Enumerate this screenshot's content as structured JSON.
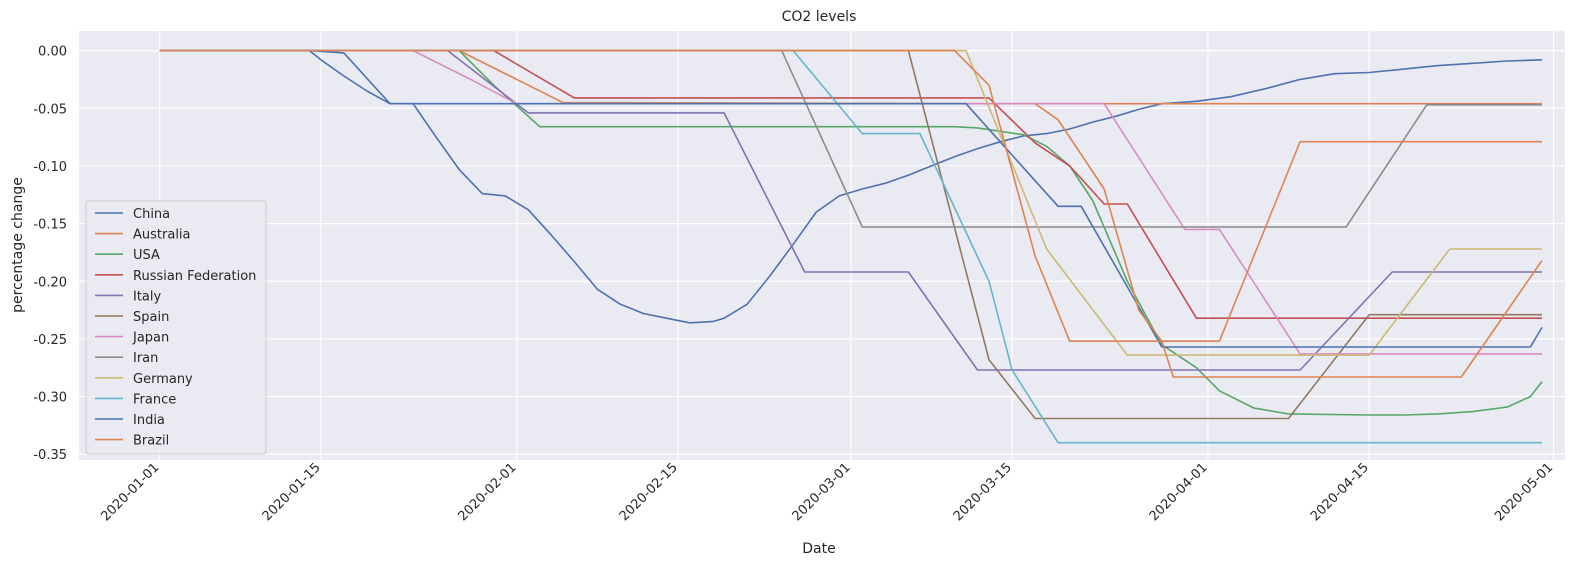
{
  "chart_data": {
    "type": "line",
    "title": "CO2 levels",
    "xlabel": "Date",
    "ylabel": "percentage change",
    "xlim": [
      "2019-12-25",
      "2020-05-02"
    ],
    "ylim": [
      -0.355,
      0.017
    ],
    "x_ticks": [
      "2020-01-01",
      "2020-01-15",
      "2020-02-01",
      "2020-02-15",
      "2020-03-01",
      "2020-03-15",
      "2020-04-01",
      "2020-04-15",
      "2020-05-01"
    ],
    "y_ticks": [
      "0.00",
      "-0.05",
      "-0.10",
      "-0.15",
      "-0.20",
      "-0.25",
      "-0.30",
      "-0.35"
    ],
    "y_tick_values": [
      0.0,
      -0.05,
      -0.1,
      -0.15,
      -0.2,
      -0.25,
      -0.3,
      -0.35
    ],
    "grid": true,
    "legend_position": "lower-left",
    "series": [
      {
        "name": "China",
        "color": "#4c72b0",
        "points": [
          [
            "2020-01-01",
            0
          ],
          [
            "2020-01-14",
            0
          ],
          [
            "2020-01-15",
            -0.008
          ],
          [
            "2020-01-17",
            -0.022
          ],
          [
            "2020-01-19",
            -0.035
          ],
          [
            "2020-01-21",
            -0.046
          ],
          [
            "2020-01-23",
            -0.046
          ],
          [
            "2020-01-25",
            -0.075
          ],
          [
            "2020-01-27",
            -0.103
          ],
          [
            "2020-01-29",
            -0.124
          ],
          [
            "2020-01-31",
            -0.126
          ],
          [
            "2020-02-02",
            -0.138
          ],
          [
            "2020-02-04",
            -0.16
          ],
          [
            "2020-02-06",
            -0.183
          ],
          [
            "2020-02-08",
            -0.207
          ],
          [
            "2020-02-10",
            -0.22
          ],
          [
            "2020-02-12",
            -0.228
          ],
          [
            "2020-02-14",
            -0.232
          ],
          [
            "2020-02-16",
            -0.236
          ],
          [
            "2020-02-18",
            -0.235
          ],
          [
            "2020-02-19",
            -0.232
          ],
          [
            "2020-02-21",
            -0.22
          ],
          [
            "2020-02-23",
            -0.195
          ],
          [
            "2020-02-25",
            -0.168
          ],
          [
            "2020-02-27",
            -0.14
          ],
          [
            "2020-02-29",
            -0.126
          ],
          [
            "2020-03-02",
            -0.12
          ],
          [
            "2020-03-04",
            -0.115
          ],
          [
            "2020-03-06",
            -0.108
          ],
          [
            "2020-03-08",
            -0.1
          ],
          [
            "2020-03-10",
            -0.092
          ],
          [
            "2020-03-12",
            -0.085
          ],
          [
            "2020-03-14",
            -0.079
          ],
          [
            "2020-03-16",
            -0.074
          ],
          [
            "2020-03-18",
            -0.072
          ],
          [
            "2020-03-20",
            -0.068
          ],
          [
            "2020-03-22",
            -0.062
          ],
          [
            "2020-03-24",
            -0.057
          ],
          [
            "2020-03-26",
            -0.051
          ],
          [
            "2020-03-28",
            -0.046
          ],
          [
            "2020-03-31",
            -0.044
          ],
          [
            "2020-04-03",
            -0.04
          ],
          [
            "2020-04-06",
            -0.033
          ],
          [
            "2020-04-09",
            -0.025
          ],
          [
            "2020-04-12",
            -0.02
          ],
          [
            "2020-04-15",
            -0.019
          ],
          [
            "2020-04-18",
            -0.016
          ],
          [
            "2020-04-21",
            -0.013
          ],
          [
            "2020-04-24",
            -0.011
          ],
          [
            "2020-04-27",
            -0.009
          ],
          [
            "2020-04-30",
            -0.008
          ]
        ]
      },
      {
        "name": "Australia",
        "color": "#dd8452",
        "points": [
          [
            "2020-01-01",
            0
          ],
          [
            "2020-01-27",
            0
          ],
          [
            "2020-01-30",
            -0.015
          ],
          [
            "2020-02-02",
            -0.03
          ],
          [
            "2020-02-05",
            -0.045
          ],
          [
            "2020-03-11",
            -0.046
          ],
          [
            "2020-04-30",
            -0.046
          ]
        ]
      },
      {
        "name": "USA",
        "color": "#55a868",
        "points": [
          [
            "2020-01-01",
            0
          ],
          [
            "2020-01-27",
            0
          ],
          [
            "2020-01-30",
            -0.03
          ],
          [
            "2020-02-03",
            -0.066
          ],
          [
            "2020-03-10",
            -0.066
          ],
          [
            "2020-03-12",
            -0.067
          ],
          [
            "2020-03-16",
            -0.073
          ],
          [
            "2020-03-18",
            -0.083
          ],
          [
            "2020-03-20",
            -0.1
          ],
          [
            "2020-03-22",
            -0.13
          ],
          [
            "2020-03-25",
            -0.2
          ],
          [
            "2020-03-28",
            -0.255
          ],
          [
            "2020-03-31",
            -0.275
          ],
          [
            "2020-04-02",
            -0.295
          ],
          [
            "2020-04-05",
            -0.31
          ],
          [
            "2020-04-08",
            -0.315
          ],
          [
            "2020-04-15",
            -0.316
          ],
          [
            "2020-04-18",
            -0.316
          ],
          [
            "2020-04-21",
            -0.315
          ],
          [
            "2020-04-24",
            -0.313
          ],
          [
            "2020-04-27",
            -0.309
          ],
          [
            "2020-04-29",
            -0.3
          ],
          [
            "2020-04-30",
            -0.287
          ]
        ]
      },
      {
        "name": "Russian Federation",
        "color": "#c44e52",
        "points": [
          [
            "2020-01-01",
            0
          ],
          [
            "2020-01-30",
            0
          ],
          [
            "2020-02-06",
            -0.041
          ],
          [
            "2020-03-13",
            -0.041
          ],
          [
            "2020-03-17",
            -0.08
          ],
          [
            "2020-03-20",
            -0.1
          ],
          [
            "2020-03-23",
            -0.133
          ],
          [
            "2020-03-25",
            -0.133
          ],
          [
            "2020-03-31",
            -0.232
          ],
          [
            "2020-04-30",
            -0.232
          ]
        ]
      },
      {
        "name": "Italy",
        "color": "#8172b3",
        "points": [
          [
            "2020-01-01",
            0
          ],
          [
            "2020-01-26",
            0
          ],
          [
            "2020-02-02",
            -0.054
          ],
          [
            "2020-02-19",
            -0.054
          ],
          [
            "2020-02-26",
            -0.192
          ],
          [
            "2020-03-06",
            -0.192
          ],
          [
            "2020-03-12",
            -0.277
          ],
          [
            "2020-04-09",
            -0.277
          ],
          [
            "2020-04-17",
            -0.192
          ],
          [
            "2020-04-30",
            -0.192
          ]
        ]
      },
      {
        "name": "Spain",
        "color": "#937860",
        "points": [
          [
            "2020-01-01",
            0
          ],
          [
            "2020-03-06",
            0
          ],
          [
            "2020-03-13",
            -0.268
          ],
          [
            "2020-03-17",
            -0.319
          ],
          [
            "2020-04-08",
            -0.319
          ],
          [
            "2020-04-15",
            -0.229
          ],
          [
            "2020-04-30",
            -0.229
          ]
        ]
      },
      {
        "name": "Japan",
        "color": "#da8bc3",
        "points": [
          [
            "2020-01-01",
            0
          ],
          [
            "2020-01-23",
            0
          ],
          [
            "2020-01-25",
            -0.01
          ],
          [
            "2020-01-28",
            -0.025
          ],
          [
            "2020-02-01",
            -0.046
          ],
          [
            "2020-03-23",
            -0.046
          ],
          [
            "2020-03-30",
            -0.155
          ],
          [
            "2020-04-02",
            -0.155
          ],
          [
            "2020-04-09",
            -0.263
          ],
          [
            "2020-04-30",
            -0.263
          ]
        ]
      },
      {
        "name": "Iran",
        "color": "#8c8c8c",
        "points": [
          [
            "2020-01-01",
            0
          ],
          [
            "2020-02-24",
            0
          ],
          [
            "2020-03-02",
            -0.153
          ],
          [
            "2020-04-13",
            -0.153
          ],
          [
            "2020-04-20",
            -0.047
          ],
          [
            "2020-04-30",
            -0.047
          ]
        ]
      },
      {
        "name": "Germany",
        "color": "#ccb974",
        "points": [
          [
            "2020-01-01",
            0
          ],
          [
            "2020-03-11",
            0
          ],
          [
            "2020-03-18",
            -0.172
          ],
          [
            "2020-03-25",
            -0.264
          ],
          [
            "2020-04-15",
            -0.264
          ],
          [
            "2020-04-22",
            -0.172
          ],
          [
            "2020-04-30",
            -0.172
          ]
        ]
      },
      {
        "name": "France",
        "color": "#64b5cd",
        "points": [
          [
            "2020-01-01",
            0
          ],
          [
            "2020-02-25",
            0
          ],
          [
            "2020-03-02",
            -0.072
          ],
          [
            "2020-03-07",
            -0.072
          ],
          [
            "2020-03-13",
            -0.2
          ],
          [
            "2020-03-15",
            -0.277
          ],
          [
            "2020-03-19",
            -0.34
          ],
          [
            "2020-04-30",
            -0.34
          ]
        ]
      },
      {
        "name": "India",
        "color": "#4c72b0",
        "points": [
          [
            "2020-01-01",
            0
          ],
          [
            "2020-01-14",
            0
          ],
          [
            "2020-01-17",
            -0.002
          ],
          [
            "2020-01-21",
            -0.046
          ],
          [
            "2020-03-11",
            -0.046
          ],
          [
            "2020-03-19",
            -0.135
          ],
          [
            "2020-03-21",
            -0.135
          ],
          [
            "2020-03-28",
            -0.257
          ],
          [
            "2020-04-29",
            -0.257
          ],
          [
            "2020-04-30",
            -0.24
          ]
        ]
      },
      {
        "name": "Brazil",
        "color": "#dd8452",
        "points": [
          [
            "2020-01-01",
            0
          ],
          [
            "2020-03-10",
            0
          ],
          [
            "2020-03-13",
            -0.03
          ],
          [
            "2020-03-17",
            -0.178
          ],
          [
            "2020-03-20",
            -0.252
          ],
          [
            "2020-03-28",
            -0.252
          ],
          [
            "2020-03-29",
            -0.283
          ],
          [
            "2020-04-23",
            -0.283
          ],
          [
            "2020-04-30",
            -0.182
          ]
        ]
      }
    ],
    "extra_series_unlabeled": [
      {
        "color": "#dd8452",
        "points": [
          [
            "2020-03-17",
            -0.046
          ],
          [
            "2020-03-19",
            -0.06
          ],
          [
            "2020-03-23",
            -0.12
          ],
          [
            "2020-03-26",
            -0.225
          ],
          [
            "2020-03-28",
            -0.252
          ],
          [
            "2020-04-02",
            -0.252
          ],
          [
            "2020-04-09",
            -0.079
          ],
          [
            "2020-04-30",
            -0.079
          ]
        ]
      }
    ]
  }
}
